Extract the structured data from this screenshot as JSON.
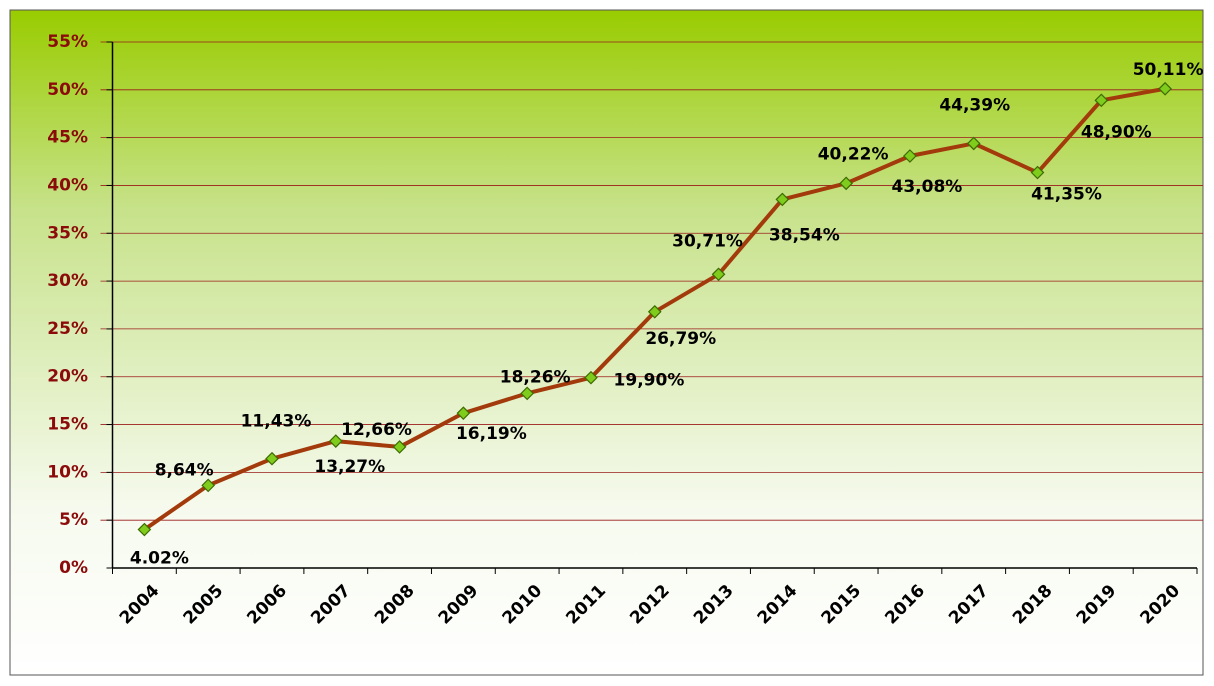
{
  "chart_data": {
    "type": "line",
    "categories": [
      "2004",
      "2005",
      "2006",
      "2007",
      "2008",
      "2009",
      "2010",
      "2011",
      "2012",
      "2013",
      "2014",
      "2015",
      "2016",
      "2017",
      "2018",
      "2019",
      "2020"
    ],
    "series": [
      {
        "color": "#a33a0c",
        "values": [
          4.02,
          8.64,
          11.43,
          13.27,
          12.66,
          16.19,
          18.26,
          19.9,
          26.79,
          30.71,
          38.54,
          40.22,
          43.08,
          44.39,
          41.35,
          48.9,
          50.11
        ],
        "value_labels": [
          "4.02%",
          "8,64%",
          "11,43%",
          "13,27%",
          "12,66%",
          "16,19%",
          "18,26%",
          "19,90%",
          "26,79%",
          "30,71%",
          "38,54%",
          "40,22%",
          "43,08%",
          "44,39%",
          "41,35%",
          "48,90%",
          "50,11%"
        ]
      }
    ],
    "ylim": [
      0,
      55
    ],
    "yticks": [
      {
        "value": 0,
        "label": "0%"
      },
      {
        "value": 5,
        "label": "5%"
      },
      {
        "value": 10,
        "label": "10%"
      },
      {
        "value": 15,
        "label": "15%"
      },
      {
        "value": 20,
        "label": "20%"
      },
      {
        "value": 25,
        "label": "25%"
      },
      {
        "value": 30,
        "label": "30%"
      },
      {
        "value": 35,
        "label": "35%"
      },
      {
        "value": 40,
        "label": "40%"
      },
      {
        "value": 45,
        "label": "45%"
      },
      {
        "value": 50,
        "label": "50%"
      },
      {
        "value": 55,
        "label": "55%"
      }
    ],
    "grid": true,
    "marker_color": "#7fcc1c"
  }
}
